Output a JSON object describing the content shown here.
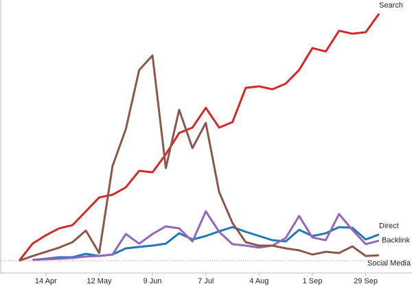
{
  "chart_data": {
    "type": "line",
    "categories": [
      null,
      null,
      "14 Apr",
      null,
      null,
      null,
      "12 May",
      null,
      null,
      null,
      "9 Jun",
      null,
      null,
      null,
      "7 Jul",
      null,
      null,
      null,
      "4 Aug",
      null,
      null,
      null,
      "1 Sep",
      null,
      null,
      null,
      "29 Sep",
      null
    ],
    "ylim": [
      0,
      100
    ],
    "series": [
      {
        "name": "Search",
        "color": "#d62728",
        "values": [
          0,
          6.9,
          10.3,
          13.1,
          14.4,
          20,
          25.6,
          26.7,
          29.7,
          36.4,
          35.8,
          43.1,
          51.7,
          53.9,
          61.9,
          53.9,
          56.1,
          70,
          70.6,
          69.4,
          71.7,
          77.2,
          86.1,
          84.7,
          93.1,
          91.9,
          92.5,
          100
        ]
      },
      {
        "name": "Direct",
        "color": "#1f77b4",
        "values": [
          null,
          0.3,
          0.8,
          1.4,
          1.4,
          2.8,
          1.9,
          2.5,
          5,
          5.6,
          6.1,
          6.9,
          11.1,
          8.6,
          10,
          11.9,
          13.6,
          11.7,
          10,
          8.3,
          7.8,
          12.5,
          10,
          11.1,
          13.6,
          13.3,
          8.6,
          10.6
        ]
      },
      {
        "name": "Backlink",
        "color": "#9467bd",
        "values": [
          null,
          0.3,
          0.6,
          0.8,
          1.1,
          1.7,
          1.9,
          2.5,
          10.8,
          6.9,
          10.8,
          13.9,
          13.1,
          7.8,
          20,
          11.7,
          6.7,
          6.1,
          5.3,
          6.1,
          9.2,
          18.1,
          9.4,
          8.3,
          18.9,
          12.5,
          6.7,
          8.1
        ]
      },
      {
        "name": "Social Media",
        "color": "#8c564b",
        "values": [
          0,
          1.9,
          3.6,
          5.3,
          7.5,
          12.2,
          3.1,
          38.3,
          53.3,
          77.2,
          83.1,
          37.5,
          61.1,
          45.6,
          55.8,
          27.8,
          15.3,
          7.5,
          6.1,
          6.1,
          5,
          4.2,
          2.5,
          3.6,
          3.1,
          5.8,
          1.9,
          2.2
        ]
      }
    ]
  }
}
